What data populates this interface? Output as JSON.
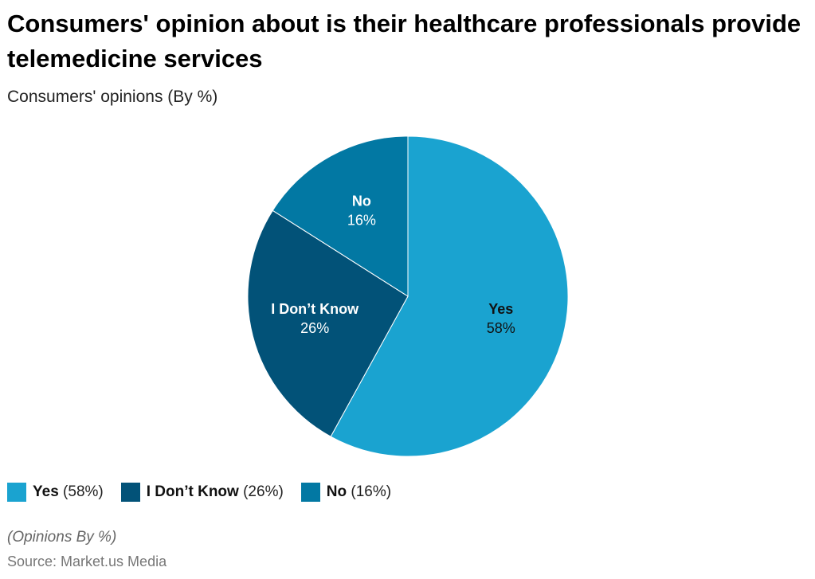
{
  "title": "Consumers' opinion about is their healthcare professionals provide telemedicine services",
  "subtitle": "Consumers' opinions (By %)",
  "note": "(Opinions By %)",
  "source": "Source: Market.us Media",
  "chart_data": {
    "type": "pie",
    "title": "Consumers' opinion about is their healthcare professionals provide telemedicine services",
    "subtitle": "Consumers' opinions (By %)",
    "legend_position": "bottom-left",
    "slices": [
      {
        "label": "Yes",
        "value": 58,
        "value_label": "58%",
        "legend": "(58%)",
        "color": "#1aa3d0",
        "text_color": "#111111"
      },
      {
        "label": "I Don’t Know",
        "value": 26,
        "value_label": "26%",
        "legend": "(26%)",
        "color": "#025278",
        "text_color": "#ffffff"
      },
      {
        "label": "No",
        "value": 16,
        "value_label": "16%",
        "legend": "(16%)",
        "color": "#0278a3",
        "text_color": "#ffffff"
      }
    ]
  }
}
